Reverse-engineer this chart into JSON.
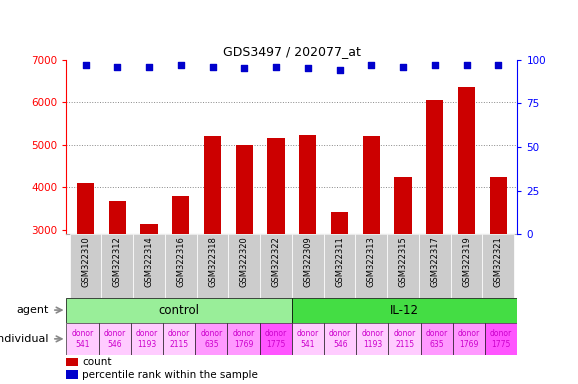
{
  "title": "GDS3497 / 202077_at",
  "samples": [
    "GSM322310",
    "GSM322312",
    "GSM322314",
    "GSM322316",
    "GSM322318",
    "GSM322320",
    "GSM322322",
    "GSM322309",
    "GSM322311",
    "GSM322313",
    "GSM322315",
    "GSM322317",
    "GSM322319",
    "GSM322321"
  ],
  "counts": [
    4100,
    3680,
    3130,
    3800,
    5200,
    5000,
    5150,
    5220,
    3430,
    5200,
    4250,
    6050,
    6350,
    4250
  ],
  "percentile_ranks": [
    97,
    96,
    96,
    97,
    96,
    95,
    96,
    95,
    94,
    97,
    96,
    97,
    97,
    97
  ],
  "ylim_left": [
    2900,
    7000
  ],
  "ylim_right": [
    0,
    100
  ],
  "yticks_left": [
    3000,
    4000,
    5000,
    6000,
    7000
  ],
  "yticks_right": [
    0,
    25,
    50,
    75,
    100
  ],
  "bar_color": "#cc0000",
  "dot_color": "#0000cc",
  "grid_dotted_color": "#888888",
  "agent_control_color": "#99ee99",
  "agent_il12_color": "#44dd44",
  "individual_colors_control": [
    "#ffccff",
    "#ffccff",
    "#ffccff",
    "#ffccff",
    "#ff99ff",
    "#ff99ff",
    "#ff55ff"
  ],
  "individual_colors_il12": [
    "#ffccff",
    "#ffccff",
    "#ffccff",
    "#ffccff",
    "#ff99ff",
    "#ff99ff",
    "#ff55ff"
  ],
  "agent_groups": [
    {
      "label": "control",
      "start": 0,
      "end": 7
    },
    {
      "label": "IL-12",
      "start": 7,
      "end": 14
    }
  ],
  "individual_labels": [
    "donor\n541",
    "donor\n546",
    "donor\n1193",
    "donor\n2115",
    "donor\n635",
    "donor\n1769",
    "donor\n1775",
    "donor\n541",
    "donor\n546",
    "donor\n1193",
    "donor\n2115",
    "donor\n635",
    "donor\n1769",
    "donor\n1775"
  ],
  "individual_colors": [
    "#ffccff",
    "#ffccff",
    "#ffccff",
    "#ffccff",
    "#ff99ff",
    "#ff99ff",
    "#ff55ff",
    "#ffccff",
    "#ffccff",
    "#ffccff",
    "#ffccff",
    "#ff99ff",
    "#ff99ff",
    "#ff55ff"
  ],
  "legend_count_color": "#cc0000",
  "legend_dot_color": "#0000cc",
  "bar_width": 0.55,
  "tick_bg_color": "#cccccc",
  "left_label_color": "#888888",
  "arrow_color": "#888888"
}
